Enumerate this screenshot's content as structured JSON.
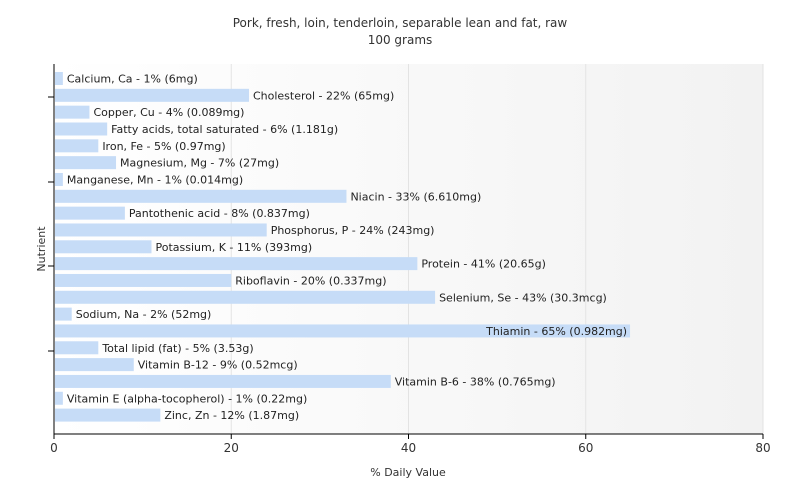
{
  "chart_data": {
    "type": "bar",
    "orientation": "horizontal",
    "title": "Pork, fresh, loin, tenderloin, separable lean and fat, raw",
    "subtitle": "100 grams",
    "xlabel": "% Daily Value",
    "ylabel": "Nutrient",
    "xlim": [
      0,
      80
    ],
    "xticks": [
      0,
      20,
      40,
      60,
      80
    ],
    "grid": "vertical",
    "bar_color": "#c6dcf7",
    "categories": [
      "Calcium, Ca",
      "Cholesterol",
      "Copper, Cu",
      "Fatty acids, total saturated",
      "Iron, Fe",
      "Magnesium, Mg",
      "Manganese, Mn",
      "Niacin",
      "Pantothenic acid",
      "Phosphorus, P",
      "Potassium, K",
      "Protein",
      "Riboflavin",
      "Selenium, Se",
      "Sodium, Na",
      "Thiamin",
      "Total lipid (fat)",
      "Vitamin B-12",
      "Vitamin B-6",
      "Vitamin E (alpha-tocopherol)",
      "Zinc, Zn"
    ],
    "values": [
      1,
      22,
      4,
      6,
      5,
      7,
      1,
      33,
      8,
      24,
      11,
      41,
      20,
      43,
      2,
      65,
      5,
      9,
      38,
      1,
      12
    ],
    "labels": [
      "Calcium, Ca - 1% (6mg)",
      "Cholesterol - 22% (65mg)",
      "Copper, Cu - 4% (0.089mg)",
      "Fatty acids, total saturated - 6% (1.181g)",
      "Iron, Fe - 5% (0.97mg)",
      "Magnesium, Mg - 7% (27mg)",
      "Manganese, Mn - 1% (0.014mg)",
      "Niacin - 33% (6.610mg)",
      "Pantothenic acid - 8% (0.837mg)",
      "Phosphorus, P - 24% (243mg)",
      "Potassium, K - 11% (393mg)",
      "Protein - 41% (20.65g)",
      "Riboflavin - 20% (0.337mg)",
      "Selenium, Se - 43% (30.3mcg)",
      "Sodium, Na - 2% (52mg)",
      "Thiamin - 65% (0.982mg)",
      "Total lipid (fat) - 5% (3.53g)",
      "Vitamin B-12 - 9% (0.52mcg)",
      "Vitamin B-6 - 38% (0.765mg)",
      "Vitamin E (alpha-tocopherol) - 1% (0.22mg)",
      "Zinc, Zn - 12% (1.87mg)"
    ]
  }
}
